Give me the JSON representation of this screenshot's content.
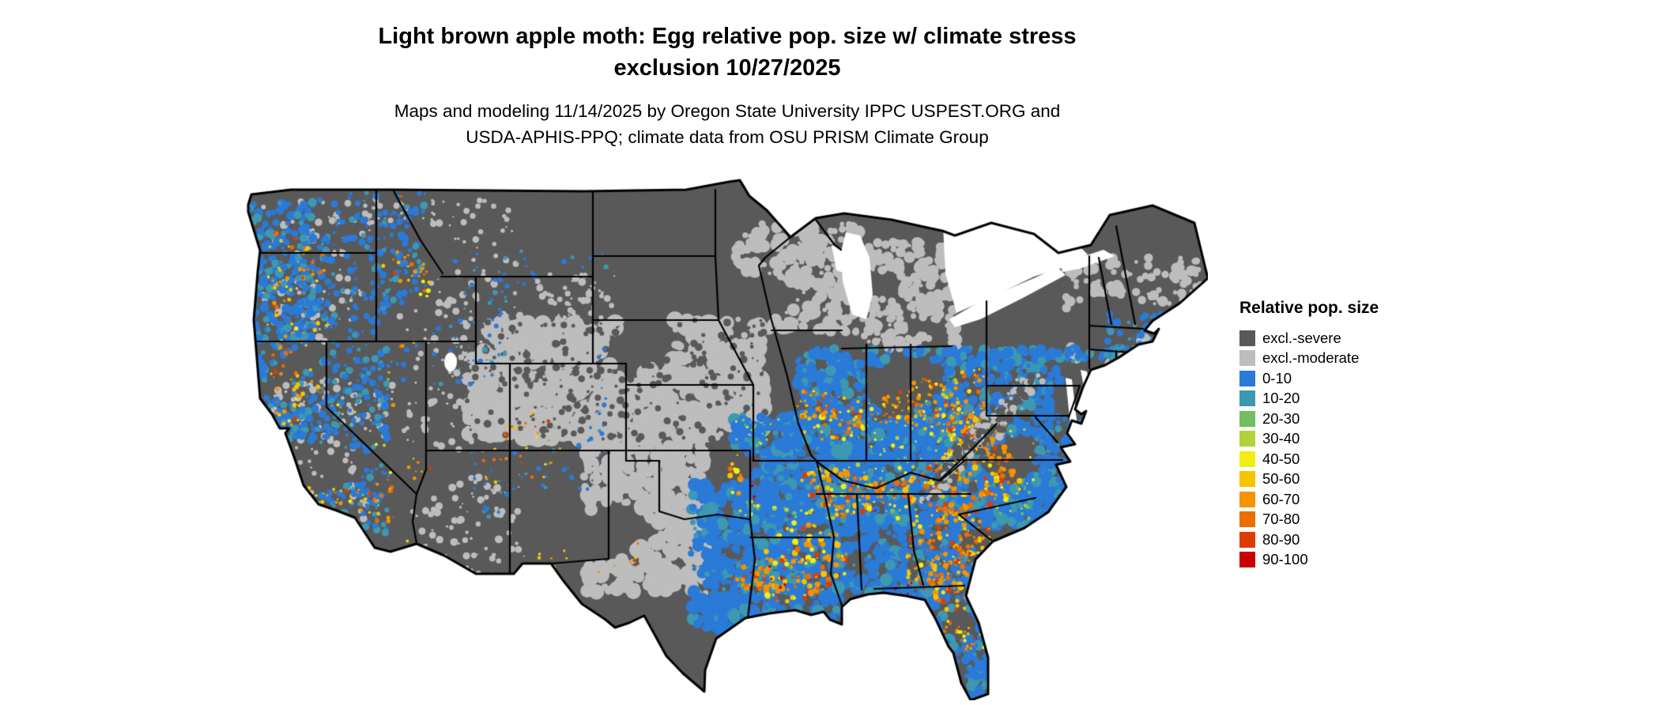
{
  "figure": {
    "title_line1": "Light brown apple moth: Egg relative pop. size w/ climate stress",
    "title_line2": "exclusion 10/27/2025",
    "subtitle_line1": "Maps and modeling 11/14/2025 by Oregon State University IPPC USPEST.ORG and",
    "subtitle_line2": "USDA-APHIS-PPQ; climate data from OSU PRISM Climate Group"
  },
  "legend": {
    "title": "Relative pop. size",
    "items": [
      {
        "label": "excl.-severe",
        "color": "#595959"
      },
      {
        "label": "excl.-moderate",
        "color": "#BDBDBD"
      },
      {
        "label": "0-10",
        "color": "#2A7AD8"
      },
      {
        "label": "10-20",
        "color": "#3D98B2"
      },
      {
        "label": "20-30",
        "color": "#72BE62"
      },
      {
        "label": "30-40",
        "color": "#B3D139"
      },
      {
        "label": "40-50",
        "color": "#F2ED13"
      },
      {
        "label": "50-60",
        "color": "#F7C400"
      },
      {
        "label": "60-70",
        "color": "#F49400"
      },
      {
        "label": "70-80",
        "color": "#EA6E00"
      },
      {
        "label": "80-90",
        "color": "#DC3D00"
      },
      {
        "label": "90-100",
        "color": "#C80000"
      }
    ]
  },
  "map": {
    "region": "Continental United States",
    "style": "raster choropleth with state borders",
    "border_color": "#000000",
    "background": "#ffffff"
  }
}
